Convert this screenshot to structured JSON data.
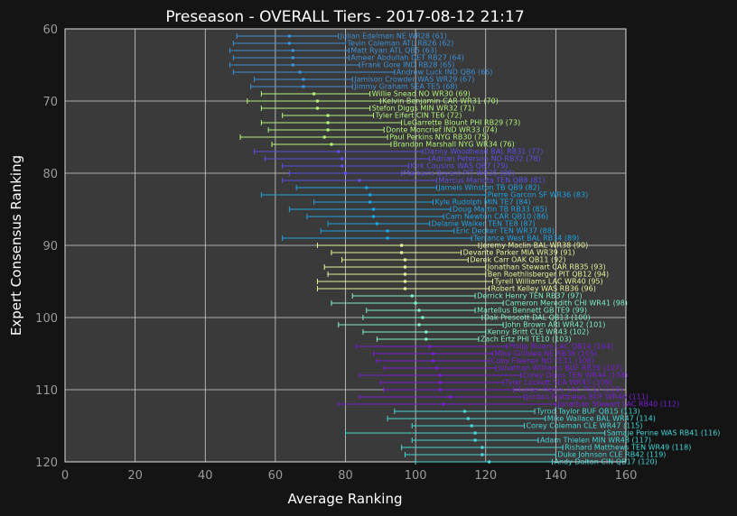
{
  "chart_data": {
    "type": "scatter",
    "title": "Preseason - OVERALL Tiers - 2017-08-12 21:17",
    "xlabel": "Average Ranking",
    "ylabel": "Expert Consensus Ranking",
    "xlim": [
      0,
      160
    ],
    "ylim": [
      120,
      60
    ],
    "xticks": [
      "0",
      "20",
      "40",
      "60",
      "80",
      "100",
      "120",
      "140",
      "160"
    ],
    "yticks": [
      "60",
      "70",
      "80",
      "90",
      "100",
      "110",
      "120"
    ],
    "grid": true,
    "tier_colors": [
      "#3d8fd6",
      "#b3f27a",
      "#5b4fe6",
      "#1fa2e3",
      "#e8f39a",
      "#7cf0c3",
      "#7a1fd6",
      "#45d6d6"
    ],
    "players": [
      {
        "label": "Julian Edelman NE  WR28 (61)",
        "rank": 61,
        "avg": 64,
        "min": 49,
        "max": 78,
        "tier": 0
      },
      {
        "label": "Tevin Coleman ATL  RB26 (62)",
        "rank": 62,
        "avg": 64,
        "min": 48,
        "max": 80,
        "tier": 0
      },
      {
        "label": "Matt Ryan ATL  QB5 (63)",
        "rank": 63,
        "avg": 65,
        "min": 47,
        "max": 81,
        "tier": 0
      },
      {
        "label": "Ameer Abdullah DET  RB27 (64)",
        "rank": 64,
        "avg": 65,
        "min": 48,
        "max": 81,
        "tier": 0
      },
      {
        "label": "Frank Gore IND  RB28 (65)",
        "rank": 65,
        "avg": 65,
        "min": 47,
        "max": 84,
        "tier": 0
      },
      {
        "label": "Andrew Luck IND  QB6 (66)",
        "rank": 66,
        "avg": 67,
        "min": 48,
        "max": 94,
        "tier": 0
      },
      {
        "label": "Jamison Crowder WAS  WR29 (67)",
        "rank": 67,
        "avg": 68,
        "min": 54,
        "max": 82,
        "tier": 0
      },
      {
        "label": "Jimmy Graham SEA  TE5 (68)",
        "rank": 68,
        "avg": 68,
        "min": 53,
        "max": 82,
        "tier": 0
      },
      {
        "label": "Willie Snead NO  WR30 (69)",
        "rank": 69,
        "avg": 71,
        "min": 56,
        "max": 87,
        "tier": 1
      },
      {
        "label": "Kelvin Benjamin CAR  WR31 (70)",
        "rank": 70,
        "avg": 72,
        "min": 52,
        "max": 90,
        "tier": 1
      },
      {
        "label": "Stefon Diggs MIN  WR32 (71)",
        "rank": 71,
        "avg": 72,
        "min": 56,
        "max": 87,
        "tier": 1
      },
      {
        "label": "Tyler Eifert CIN  TE6 (72)",
        "rank": 72,
        "avg": 75,
        "min": 62,
        "max": 88,
        "tier": 1
      },
      {
        "label": "LeGarrette Blount PHI  RB29 (73)",
        "rank": 73,
        "avg": 75,
        "min": 56,
        "max": 96,
        "tier": 1
      },
      {
        "label": "Donte Moncrief IND  WR33 (74)",
        "rank": 74,
        "avg": 75,
        "min": 58,
        "max": 91,
        "tier": 1
      },
      {
        "label": "Paul Perkins NYG  RB30 (75)",
        "rank": 75,
        "avg": 74,
        "min": 50,
        "max": 92,
        "tier": 1
      },
      {
        "label": "Brandon Marshall NYG  WR34 (76)",
        "rank": 76,
        "avg": 76,
        "min": 59,
        "max": 93,
        "tier": 1
      },
      {
        "label": "Danny Woodhead BAL  RB31 (77)",
        "rank": 77,
        "avg": 78,
        "min": 54,
        "max": 102,
        "tier": 2
      },
      {
        "label": "Adrian Peterson NO  RB32 (78)",
        "rank": 78,
        "avg": 79,
        "min": 57,
        "max": 104,
        "tier": 2
      },
      {
        "label": "Kirk Cousins WAS  QB7 (79)",
        "rank": 79,
        "avg": 79,
        "min": 62,
        "max": 98,
        "tier": 2
      },
      {
        "label": "Martavis Bryant PIT  WR35 (80)",
        "rank": 80,
        "avg": 80,
        "min": 64,
        "max": 96,
        "tier": 2
      },
      {
        "label": "Marcus Mariota TEN  QB8 (81)",
        "rank": 81,
        "avg": 84,
        "min": 62,
        "max": 106,
        "tier": 2
      },
      {
        "label": "Jameis Winston TB  QB9 (82)",
        "rank": 82,
        "avg": 86,
        "min": 66,
        "max": 106,
        "tier": 3
      },
      {
        "label": "Pierre Garcon SF  WR36 (83)",
        "rank": 83,
        "avg": 87,
        "min": 56,
        "max": 120,
        "tier": 3
      },
      {
        "label": "Kyle Rudolph MIN  TE7 (84)",
        "rank": 84,
        "avg": 87,
        "min": 71,
        "max": 105,
        "tier": 3
      },
      {
        "label": "Doug Martin TB  RB33 (85)",
        "rank": 85,
        "avg": 88,
        "min": 64,
        "max": 110,
        "tier": 3
      },
      {
        "label": "Cam Newton CAR  QB10 (86)",
        "rank": 86,
        "avg": 88,
        "min": 69,
        "max": 108,
        "tier": 3
      },
      {
        "label": "Delanie Walker TEN  TE8 (87)",
        "rank": 87,
        "avg": 89,
        "min": 75,
        "max": 104,
        "tier": 3
      },
      {
        "label": "Eric Decker TEN  WR37 (88)",
        "rank": 88,
        "avg": 92,
        "min": 73,
        "max": 111,
        "tier": 3
      },
      {
        "label": "Terrance West BAL  RB34 (89)",
        "rank": 89,
        "avg": 92,
        "min": 62,
        "max": 116,
        "tier": 3
      },
      {
        "label": "Jeremy Maclin BAL  WR38 (90)",
        "rank": 90,
        "avg": 96,
        "min": 72,
        "max": 118,
        "tier": 4
      },
      {
        "label": "Devante Parker MIA  WR39 (91)",
        "rank": 91,
        "avg": 96,
        "min": 76,
        "max": 113,
        "tier": 4
      },
      {
        "label": "Derek Carr OAK  QB11 (92)",
        "rank": 92,
        "avg": 97,
        "min": 79,
        "max": 115,
        "tier": 4
      },
      {
        "label": "Jonathan Stewart CAR  RB35 (93)",
        "rank": 93,
        "avg": 97,
        "min": 74,
        "max": 120,
        "tier": 4
      },
      {
        "label": "Ben Roethlisberger PIT  QB12 (94)",
        "rank": 94,
        "avg": 97,
        "min": 75,
        "max": 120,
        "tier": 4
      },
      {
        "label": "Tyrell Williams LAC  WR40 (95)",
        "rank": 95,
        "avg": 97,
        "min": 72,
        "max": 122,
        "tier": 4
      },
      {
        "label": "Robert Kelley WAS  RB36 (96)",
        "rank": 96,
        "avg": 97,
        "min": 72,
        "max": 121,
        "tier": 4
      },
      {
        "label": "Derrick Henry TEN  RB37 (97)",
        "rank": 97,
        "avg": 99,
        "min": 82,
        "max": 117,
        "tier": 5
      },
      {
        "label": "Cameron Meredith CHI  WR41 (98)",
        "rank": 98,
        "avg": 100,
        "min": 76,
        "max": 125,
        "tier": 5
      },
      {
        "label": "Martellus Bennett GB  TE9 (99)",
        "rank": 99,
        "avg": 101,
        "min": 86,
        "max": 117,
        "tier": 5
      },
      {
        "label": "Dak Prescott DAL  QB13 (100)",
        "rank": 100,
        "avg": 102,
        "min": 85,
        "max": 119,
        "tier": 5
      },
      {
        "label": "John Brown ARI  WR42 (101)",
        "rank": 101,
        "avg": 101,
        "min": 78,
        "max": 125,
        "tier": 5
      },
      {
        "label": "Kenny Britt CLE  WR43 (102)",
        "rank": 102,
        "avg": 103,
        "min": 85,
        "max": 120,
        "tier": 5
      },
      {
        "label": "Zach Ertz PHI  TE10 (103)",
        "rank": 103,
        "avg": 103,
        "min": 89,
        "max": 118,
        "tier": 5
      },
      {
        "label": "Philip Rivers LAC  QB14 (104)",
        "rank": 104,
        "avg": 104,
        "min": 83,
        "max": 126,
        "tier": 6
      },
      {
        "label": "Mike Gillislee NE  RB38 (105)",
        "rank": 105,
        "avg": 105,
        "min": 88,
        "max": 122,
        "tier": 6
      },
      {
        "label": "Coby Fleener NO  TE11 (106)",
        "rank": 106,
        "avg": 105,
        "min": 89,
        "max": 121,
        "tier": 6
      },
      {
        "label": "Jonathan Williams BUF  RB39 (107)",
        "rank": 107,
        "avg": 106,
        "min": 91,
        "max": 123,
        "tier": 6
      },
      {
        "label": "Corey Davis TEN  WR44 (108)",
        "rank": 108,
        "avg": 107,
        "min": 84,
        "max": 130,
        "tier": 6
      },
      {
        "label": "Tyler Lockett SEA  WR45 (109)",
        "rank": 109,
        "avg": 107,
        "min": 90,
        "max": 125,
        "tier": 6
      },
      {
        "label": "Hunter Henry LAC  TE12 (110)",
        "rank": 110,
        "avg": 107,
        "min": 91,
        "max": 128,
        "tier": 6
      },
      {
        "label": "Jordan Matthews BUF  WR46 (111)",
        "rank": 111,
        "avg": 110,
        "min": 84,
        "max": 131,
        "tier": 6
      },
      {
        "label": "Jonathan Stewart LAC  RB40 (112)",
        "rank": 112,
        "avg": 108,
        "min": 78,
        "max": 140,
        "tier": 6
      },
      {
        "label": "Tyrod Taylor BUF  QB15 (113)",
        "rank": 113,
        "avg": 114,
        "min": 94,
        "max": 134,
        "tier": 7
      },
      {
        "label": "Mike Wallace BAL  WR47 (114)",
        "rank": 114,
        "avg": 115,
        "min": 92,
        "max": 137,
        "tier": 7
      },
      {
        "label": "Corey Coleman CLE  WR47 (115)",
        "rank": 115,
        "avg": 116,
        "min": 99,
        "max": 131,
        "tier": 7
      },
      {
        "label": "Samaje Perine WAS  RB41 (116)",
        "rank": 116,
        "avg": 117,
        "min": 80,
        "max": 154,
        "tier": 7
      },
      {
        "label": "Adam Thielen MIN  WR48 (117)",
        "rank": 117,
        "avg": 117,
        "min": 99,
        "max": 135,
        "tier": 7
      },
      {
        "label": "Rishard Matthews TEN  WR49 (118)",
        "rank": 118,
        "avg": 119,
        "min": 96,
        "max": 142,
        "tier": 7
      },
      {
        "label": "Duke Johnson CLE  RB42 (119)",
        "rank": 119,
        "avg": 119,
        "min": 97,
        "max": 140,
        "tier": 7
      },
      {
        "label": "Andy Dalton CIN  QB17 (120)",
        "rank": 120,
        "avg": 121,
        "min": 100,
        "max": 139,
        "tier": 7
      }
    ]
  }
}
